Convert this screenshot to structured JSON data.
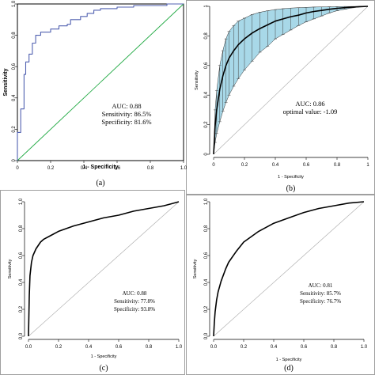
{
  "chart_data": [
    {
      "id": "a",
      "type": "line",
      "caption": "(a)",
      "xlabel": "1 - Specificity",
      "ylabel": "Sensitivity",
      "xlim": [
        0,
        1
      ],
      "ylim": [
        0,
        1
      ],
      "x_ticks": [
        "0",
        "0.2",
        "0.4",
        "0.6",
        "0.8",
        "1.0"
      ],
      "y_ticks": [
        "0",
        "0.2",
        "0.4",
        "0.6",
        "0.8",
        "1.0"
      ],
      "x_tick_values": [
        0,
        0.2,
        0.4,
        0.6,
        0.8,
        1.0
      ],
      "y_tick_values": [
        0,
        0.2,
        0.4,
        0.6,
        0.8,
        1.0
      ],
      "annotations": [
        "AUC: 0.88",
        "Sensitivity: 86.5%",
        "Specificity: 81.6%"
      ],
      "curve_color": "#5060b0",
      "reference_color": "#22aa44",
      "roc_points": [
        [
          0,
          0
        ],
        [
          0,
          0.18
        ],
        [
          0.02,
          0.18
        ],
        [
          0.02,
          0.33
        ],
        [
          0.04,
          0.33
        ],
        [
          0.04,
          0.55
        ],
        [
          0.05,
          0.55
        ],
        [
          0.05,
          0.63
        ],
        [
          0.07,
          0.63
        ],
        [
          0.07,
          0.68
        ],
        [
          0.09,
          0.68
        ],
        [
          0.09,
          0.75
        ],
        [
          0.11,
          0.75
        ],
        [
          0.11,
          0.8
        ],
        [
          0.14,
          0.8
        ],
        [
          0.14,
          0.82
        ],
        [
          0.2,
          0.82
        ],
        [
          0.2,
          0.84
        ],
        [
          0.25,
          0.84
        ],
        [
          0.25,
          0.86
        ],
        [
          0.3,
          0.86
        ],
        [
          0.3,
          0.87
        ],
        [
          0.32,
          0.87
        ],
        [
          0.32,
          0.9
        ],
        [
          0.38,
          0.9
        ],
        [
          0.38,
          0.92
        ],
        [
          0.42,
          0.92
        ],
        [
          0.42,
          0.94
        ],
        [
          0.46,
          0.94
        ],
        [
          0.46,
          0.96
        ],
        [
          0.5,
          0.96
        ],
        [
          0.5,
          0.97
        ],
        [
          0.6,
          0.97
        ],
        [
          0.6,
          0.98
        ],
        [
          0.7,
          0.98
        ],
        [
          0.7,
          0.99
        ],
        [
          0.9,
          0.99
        ],
        [
          0.9,
          1.0
        ],
        [
          1.0,
          1.0
        ]
      ]
    },
    {
      "id": "b",
      "type": "line",
      "caption": "(b)",
      "xlabel": "1 - Specificity",
      "ylabel": "Sensitivity",
      "xlim": [
        0,
        1
      ],
      "ylim": [
        0,
        1
      ],
      "x_ticks": [
        "0",
        "0.2",
        "0.4",
        "0.6",
        "0.8",
        "1"
      ],
      "y_ticks": [
        "0",
        "0.2",
        "0.4",
        "0.6",
        "0.8",
        "1"
      ],
      "x_tick_values": [
        0,
        0.2,
        0.4,
        0.6,
        0.8,
        1
      ],
      "y_tick_values": [
        0,
        0.2,
        0.4,
        0.6,
        0.8,
        1
      ],
      "annotations": [
        "AUC: 0.86",
        "optimal value: -1.09"
      ],
      "band_color": "#a8d8e8",
      "roc_points": [
        [
          0,
          0
        ],
        [
          0.01,
          0.19
        ],
        [
          0.02,
          0.3
        ],
        [
          0.04,
          0.44
        ],
        [
          0.06,
          0.53
        ],
        [
          0.08,
          0.6
        ],
        [
          0.1,
          0.65
        ],
        [
          0.13,
          0.7
        ],
        [
          0.16,
          0.74
        ],
        [
          0.2,
          0.78
        ],
        [
          0.25,
          0.82
        ],
        [
          0.3,
          0.85
        ],
        [
          0.35,
          0.875
        ],
        [
          0.4,
          0.9
        ],
        [
          0.45,
          0.915
        ],
        [
          0.5,
          0.93
        ],
        [
          0.55,
          0.94
        ],
        [
          0.6,
          0.955
        ],
        [
          0.65,
          0.965
        ],
        [
          0.7,
          0.972
        ],
        [
          0.75,
          0.98
        ],
        [
          0.8,
          0.986
        ],
        [
          0.85,
          0.991
        ],
        [
          0.9,
          0.995
        ],
        [
          0.95,
          0.998
        ],
        [
          1,
          1
        ]
      ],
      "band_upper": [
        [
          0,
          0
        ],
        [
          0.01,
          0.3
        ],
        [
          0.02,
          0.43
        ],
        [
          0.04,
          0.6
        ],
        [
          0.06,
          0.7
        ],
        [
          0.08,
          0.78
        ],
        [
          0.1,
          0.83
        ],
        [
          0.13,
          0.87
        ],
        [
          0.16,
          0.9
        ],
        [
          0.2,
          0.92
        ],
        [
          0.25,
          0.945
        ],
        [
          0.3,
          0.96
        ],
        [
          0.35,
          0.97
        ],
        [
          0.4,
          0.978
        ],
        [
          0.45,
          0.984
        ],
        [
          0.5,
          0.988
        ],
        [
          0.55,
          0.991
        ],
        [
          0.6,
          0.993
        ],
        [
          0.65,
          0.995
        ],
        [
          0.7,
          0.996
        ],
        [
          0.75,
          0.997
        ],
        [
          0.8,
          0.998
        ],
        [
          0.85,
          0.999
        ],
        [
          0.9,
          0.999
        ],
        [
          0.95,
          1
        ],
        [
          1,
          1
        ]
      ],
      "band_lower": [
        [
          0,
          0
        ],
        [
          0.01,
          0.08
        ],
        [
          0.02,
          0.14
        ],
        [
          0.04,
          0.22
        ],
        [
          0.06,
          0.29
        ],
        [
          0.08,
          0.35
        ],
        [
          0.1,
          0.4
        ],
        [
          0.13,
          0.46
        ],
        [
          0.16,
          0.51
        ],
        [
          0.2,
          0.57
        ],
        [
          0.25,
          0.63
        ],
        [
          0.3,
          0.69
        ],
        [
          0.35,
          0.73
        ],
        [
          0.4,
          0.78
        ],
        [
          0.45,
          0.81
        ],
        [
          0.5,
          0.84
        ],
        [
          0.55,
          0.87
        ],
        [
          0.6,
          0.895
        ],
        [
          0.65,
          0.915
        ],
        [
          0.7,
          0.935
        ],
        [
          0.75,
          0.955
        ],
        [
          0.8,
          0.97
        ],
        [
          0.85,
          0.98
        ],
        [
          0.9,
          0.99
        ],
        [
          0.95,
          0.996
        ],
        [
          1,
          1
        ]
      ]
    },
    {
      "id": "c",
      "type": "line",
      "caption": "(c)",
      "xlabel": "1 - Specificity",
      "ylabel": "Sensitivity",
      "xlim": [
        0,
        1
      ],
      "ylim": [
        0,
        1
      ],
      "x_ticks": [
        "0.0",
        "0.2",
        "0.4",
        "0.6",
        "0.8",
        "1.0"
      ],
      "y_ticks": [
        "0.0",
        "0.2",
        "0.4",
        "0.6",
        "0.8",
        "1.0"
      ],
      "x_tick_values": [
        0,
        0.2,
        0.4,
        0.6,
        0.8,
        1.0
      ],
      "y_tick_values": [
        0,
        0.2,
        0.4,
        0.6,
        0.8,
        1.0
      ],
      "annotations": [
        "AUC: 0.88",
        "Sensitivity: 77.8%",
        "Specificity: 93.8%"
      ],
      "roc_points": [
        [
          0,
          0
        ],
        [
          0.005,
          0.3
        ],
        [
          0.01,
          0.45
        ],
        [
          0.02,
          0.55
        ],
        [
          0.03,
          0.6
        ],
        [
          0.05,
          0.65
        ],
        [
          0.08,
          0.7
        ],
        [
          0.1,
          0.72
        ],
        [
          0.15,
          0.75
        ],
        [
          0.2,
          0.78
        ],
        [
          0.3,
          0.82
        ],
        [
          0.4,
          0.85
        ],
        [
          0.5,
          0.88
        ],
        [
          0.6,
          0.9
        ],
        [
          0.7,
          0.93
        ],
        [
          0.8,
          0.95
        ],
        [
          0.9,
          0.97
        ],
        [
          0.95,
          0.985
        ],
        [
          1,
          1
        ]
      ]
    },
    {
      "id": "d",
      "type": "line",
      "caption": "(d)",
      "xlabel": "1 - Specificity",
      "ylabel": "Sensitivity",
      "xlim": [
        0,
        1
      ],
      "ylim": [
        0,
        1
      ],
      "x_ticks": [
        "0.0",
        "0.2",
        "0.4",
        "0.6",
        "0.8",
        "1.0"
      ],
      "y_ticks": [
        "0.0",
        "0.2",
        "0.4",
        "0.6",
        "0.8",
        "1.0"
      ],
      "x_tick_values": [
        0,
        0.2,
        0.4,
        0.6,
        0.8,
        1.0
      ],
      "y_tick_values": [
        0,
        0.2,
        0.4,
        0.6,
        0.8,
        1.0
      ],
      "annotations": [
        "AUC: 0.81",
        "Sensitivity: 85.7%",
        "Specificity: 76.7%"
      ],
      "roc_points": [
        [
          0,
          0
        ],
        [
          0.005,
          0.1
        ],
        [
          0.01,
          0.18
        ],
        [
          0.02,
          0.27
        ],
        [
          0.03,
          0.33
        ],
        [
          0.05,
          0.41
        ],
        [
          0.08,
          0.5
        ],
        [
          0.1,
          0.55
        ],
        [
          0.15,
          0.63
        ],
        [
          0.2,
          0.7
        ],
        [
          0.3,
          0.78
        ],
        [
          0.4,
          0.84
        ],
        [
          0.5,
          0.88
        ],
        [
          0.6,
          0.92
        ],
        [
          0.7,
          0.95
        ],
        [
          0.8,
          0.97
        ],
        [
          0.9,
          0.99
        ],
        [
          1,
          1
        ]
      ]
    }
  ]
}
